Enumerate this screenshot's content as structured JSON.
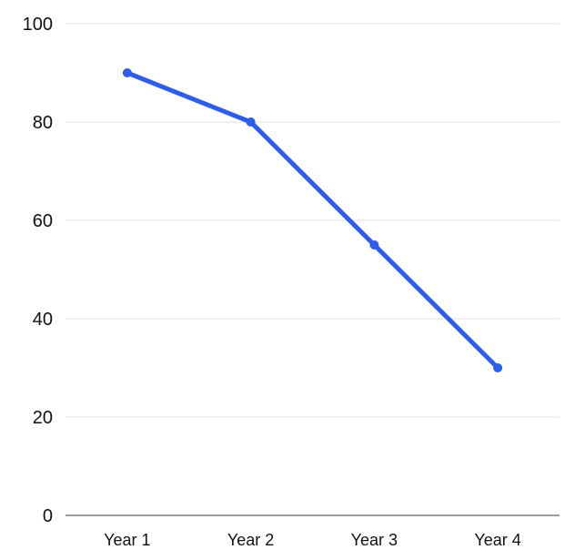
{
  "chart_data": {
    "type": "line",
    "categories": [
      "Year 1",
      "Year 2",
      "Year 3",
      "Year 4"
    ],
    "values": [
      90,
      80,
      55,
      30
    ],
    "title": "",
    "xlabel": "",
    "ylabel": "",
    "ylim": [
      0,
      100
    ],
    "yticks": [
      0,
      20,
      40,
      60,
      80,
      100
    ],
    "ytick_labels": [
      "0",
      "20",
      "40",
      "60",
      "80",
      "100"
    ],
    "grid": true,
    "legend": false,
    "line_color": "#2d5de9",
    "marker_color": "#2d5de9",
    "grid_color": "#e2e2e2",
    "axis_color": "#9b9b9b",
    "label_color": "#111111"
  }
}
